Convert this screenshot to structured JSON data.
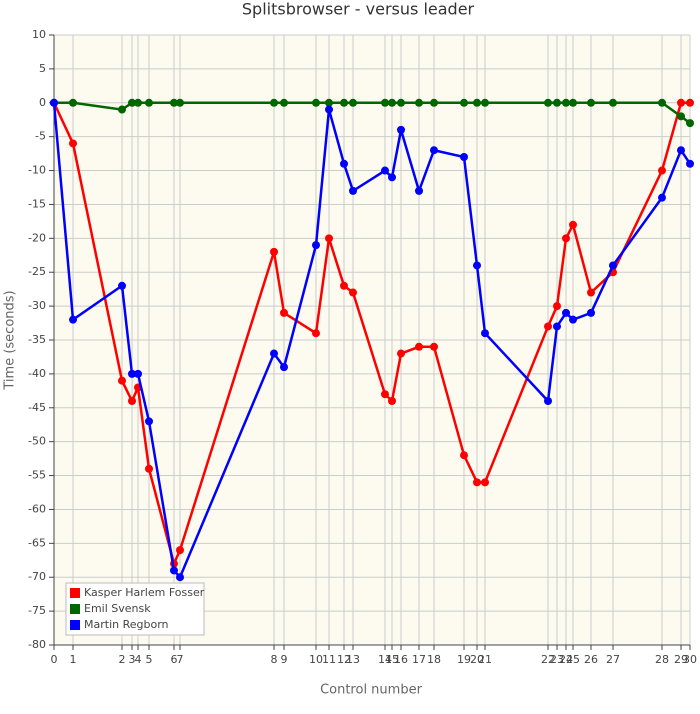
{
  "chart_data": {
    "type": "line",
    "title": "Splitsbrowser - versus leader",
    "x_label": "Control number",
    "y_label": "Time (seconds)",
    "x": [
      0,
      19,
      68,
      78,
      84,
      95,
      120,
      126,
      220,
      230,
      262,
      275,
      290,
      299,
      331,
      338,
      347,
      365,
      380,
      410,
      423,
      431,
      494,
      503,
      512,
      519,
      537,
      559,
      608,
      627,
      636
    ],
    "xlim": [
      0,
      636
    ],
    "xticks": [
      {
        "value": 0,
        "label": "0"
      },
      {
        "value": 19,
        "label": "1"
      },
      {
        "value": 68,
        "label": "2"
      },
      {
        "value": 78,
        "label": "3"
      },
      {
        "value": 84,
        "label": "4"
      },
      {
        "value": 95,
        "label": "5"
      },
      {
        "value": 120,
        "label": "6"
      },
      {
        "value": 126,
        "label": "7"
      },
      {
        "value": 220,
        "label": "8"
      },
      {
        "value": 230,
        "label": "9"
      },
      {
        "value": 262,
        "label": "10"
      },
      {
        "value": 275,
        "label": "11"
      },
      {
        "value": 290,
        "label": "12"
      },
      {
        "value": 299,
        "label": "13"
      },
      {
        "value": 331,
        "label": "14"
      },
      {
        "value": 338,
        "label": "15"
      },
      {
        "value": 347,
        "label": "16"
      },
      {
        "value": 365,
        "label": "17"
      },
      {
        "value": 380,
        "label": "18"
      },
      {
        "value": 410,
        "label": "19"
      },
      {
        "value": 423,
        "label": "20"
      },
      {
        "value": 431,
        "label": "21"
      },
      {
        "value": 494,
        "label": "22"
      },
      {
        "value": 503,
        "label": "23"
      },
      {
        "value": 512,
        "label": "24"
      },
      {
        "value": 519,
        "label": "25"
      },
      {
        "value": 537,
        "label": "26"
      },
      {
        "value": 559,
        "label": "27"
      },
      {
        "value": 608,
        "label": "28"
      },
      {
        "value": 627,
        "label": "29"
      },
      {
        "value": 636,
        "label": "30"
      }
    ],
    "ylim": [
      -80,
      10
    ],
    "yticks": [
      10,
      5,
      0,
      -5,
      -10,
      -15,
      -20,
      -25,
      -30,
      -35,
      -40,
      -45,
      -50,
      -55,
      -60,
      -65,
      -70,
      -75,
      -80
    ],
    "grid": true,
    "legend": "bottom-left",
    "series": [
      {
        "name": "Kasper Harlem Fosser",
        "color": "#ff0000",
        "values": [
          0,
          -6,
          -41,
          -44,
          -42,
          -54,
          -68,
          -66,
          -22,
          -31,
          -34,
          -20,
          -27,
          -28,
          -43,
          -44,
          -37,
          -36,
          -36,
          -52,
          -56,
          -56,
          -33,
          -30,
          -20,
          -18,
          -28,
          -25,
          -10,
          0,
          0
        ]
      },
      {
        "name": "Emil Svensk",
        "color": "#006600",
        "values": [
          0,
          0,
          -1,
          0,
          0,
          0,
          0,
          0,
          0,
          0,
          0,
          0,
          0,
          0,
          0,
          0,
          0,
          0,
          0,
          0,
          0,
          0,
          0,
          0,
          0,
          0,
          0,
          0,
          0,
          -2,
          -3
        ]
      },
      {
        "name": "Martin Regborn",
        "color": "#0000ff",
        "values": [
          0,
          -32,
          -27,
          -40,
          -40,
          -47,
          -69,
          -70,
          -37,
          -39,
          -21,
          -1,
          -9,
          -13,
          -10,
          -11,
          -4,
          -13,
          -7,
          -8,
          -24,
          -34,
          -44,
          -33,
          -31,
          -32,
          -31,
          -24,
          -14,
          -7,
          -9
        ]
      }
    ]
  }
}
